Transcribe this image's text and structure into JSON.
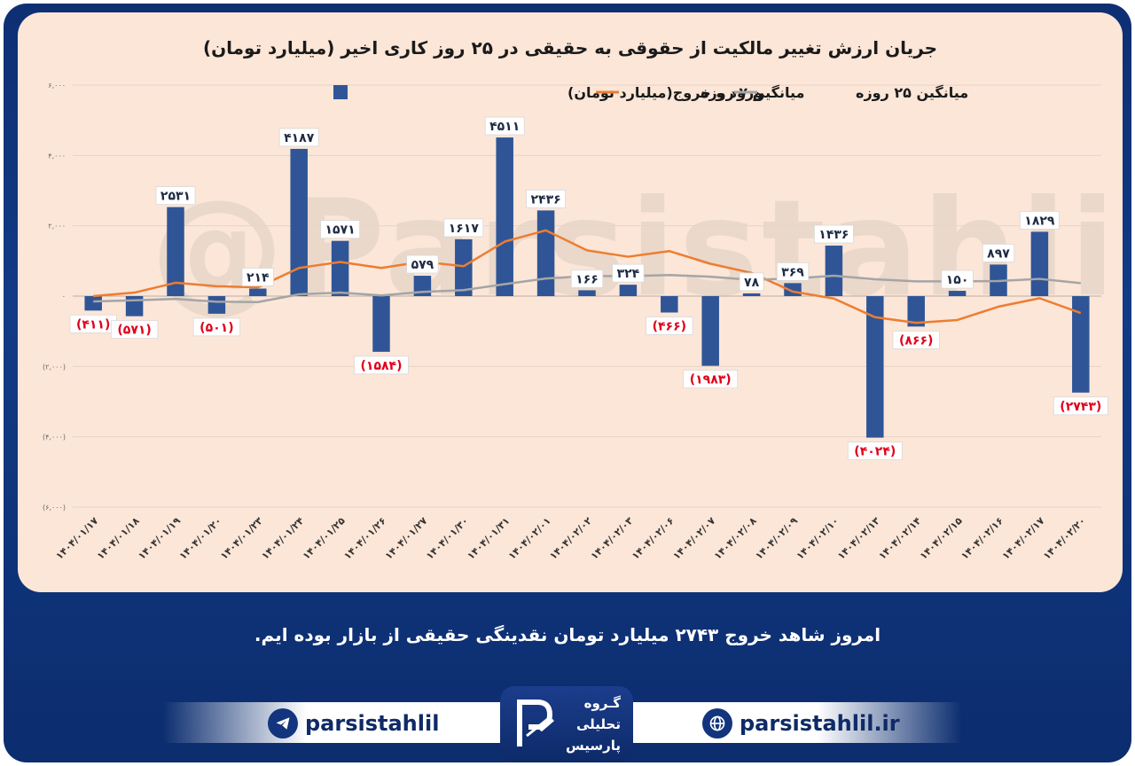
{
  "chart_data": {
    "type": "bar",
    "title": "جریان ارزش تغییر مالکیت از حقوقی به حقیقی در ۲۵ روز کاری اخیر (میلیارد تومان)",
    "categories": [
      "۱۴۰۴/۰۱/۱۷",
      "۱۴۰۴/۰۱/۱۸",
      "۱۴۰۴/۰۱/۱۹",
      "۱۴۰۴/۰۱/۲۰",
      "۱۴۰۴/۰۱/۲۳",
      "۱۴۰۴/۰۱/۲۴",
      "۱۴۰۴/۰۱/۲۵",
      "۱۴۰۴/۰۱/۲۶",
      "۱۴۰۴/۰۱/۲۷",
      "۱۴۰۴/۰۱/۳۰",
      "۱۴۰۴/۰۱/۳۱",
      "۱۴۰۴/۰۲/۰۱",
      "۱۴۰۴/۰۲/۰۲",
      "۱۴۰۴/۰۲/۰۳",
      "۱۴۰۴/۰۲/۰۶",
      "۱۴۰۴/۰۲/۰۷",
      "۱۴۰۴/۰۲/۰۸",
      "۱۴۰۴/۰۲/۰۹",
      "۱۴۰۴/۰۲/۱۰",
      "۱۴۰۴/۰۲/۱۳",
      "۱۴۰۴/۰۲/۱۴",
      "۱۴۰۴/۰۲/۱۵",
      "۱۴۰۴/۰۲/۱۶",
      "۱۴۰۴/۰۲/۱۷",
      "۱۴۰۴/۰۲/۲۰"
    ],
    "series": [
      {
        "name": "ورود و خروج(میلیارد تومان)",
        "kind": "bar",
        "color": "#2f5597",
        "values": [
          -411,
          -571,
          2531,
          -501,
          214,
          4187,
          1571,
          -1584,
          579,
          1617,
          4511,
          2436,
          166,
          324,
          -466,
          -1983,
          78,
          369,
          1436,
          -4024,
          -866,
          150,
          897,
          1829,
          -2743
        ]
      },
      {
        "name": "میانگین ۷ روزه",
        "kind": "line",
        "color": "#ed7d31",
        "values": [
          0,
          100,
          380,
          280,
          250,
          800,
          970,
          800,
          980,
          850,
          1550,
          1870,
          1300,
          1120,
          1280,
          920,
          660,
          130,
          -70,
          -600,
          -760,
          -680,
          -300,
          -60,
          -480
        ]
      },
      {
        "name": "میانگین ۲۵ روزه",
        "kind": "line",
        "color": "#a5a5a5",
        "values": [
          -150,
          -120,
          -80,
          -160,
          -170,
          50,
          100,
          20,
          120,
          170,
          340,
          500,
          570,
          570,
          600,
          550,
          460,
          500,
          580,
          480,
          420,
          420,
          430,
          490,
          370
        ]
      }
    ],
    "data_labels": [
      "(۴۱۱)",
      "(۵۷۱)",
      "۲۵۳۱",
      "(۵۰۱)",
      "۲۱۴",
      "۴۱۸۷",
      "۱۵۷۱",
      "(۱۵۸۴)",
      "۵۷۹",
      "۱۶۱۷",
      "۴۵۱۱",
      "۲۴۳۶",
      "۱۶۶",
      "۳۲۴",
      "(۴۶۶)",
      "(۱۹۸۳)",
      "۷۸",
      "۳۶۹",
      "۱۴۳۶",
      "(۴۰۲۴)",
      "(۸۶۶)",
      "۱۵۰",
      "۸۹۷",
      "۱۸۲۹",
      "(۲۷۴۳)"
    ],
    "y_ticks": [
      6000,
      4000,
      2000,
      0,
      -2000,
      -4000,
      -6000
    ],
    "y_tick_labels": [
      "۶,۰۰۰",
      "۴,۰۰۰",
      "۲,۰۰۰",
      "۰",
      "(۲,۰۰۰)",
      "(۴,۰۰۰)",
      "(۶,۰۰۰)"
    ],
    "ylim": [
      -6000,
      6000
    ],
    "grid": true,
    "legend_position": "top",
    "negative_label_color": "#e0001b",
    "positive_label_color": "#1f2a44"
  },
  "watermark": "@Parsistahlil",
  "caption": "امروز شاهد خروج ۲۷۴۳ میلیارد تومان نقدینگی حقیقی از بازار بوده ایم.",
  "footer": {
    "telegram_handle": "parsistahlil",
    "telegram_icon": "telegram-icon",
    "website": "parsistahlil.ir",
    "web_icon": "globe-icon",
    "logo_lines": [
      "گـروه",
      "تحلیلی",
      "پارسیس"
    ]
  }
}
